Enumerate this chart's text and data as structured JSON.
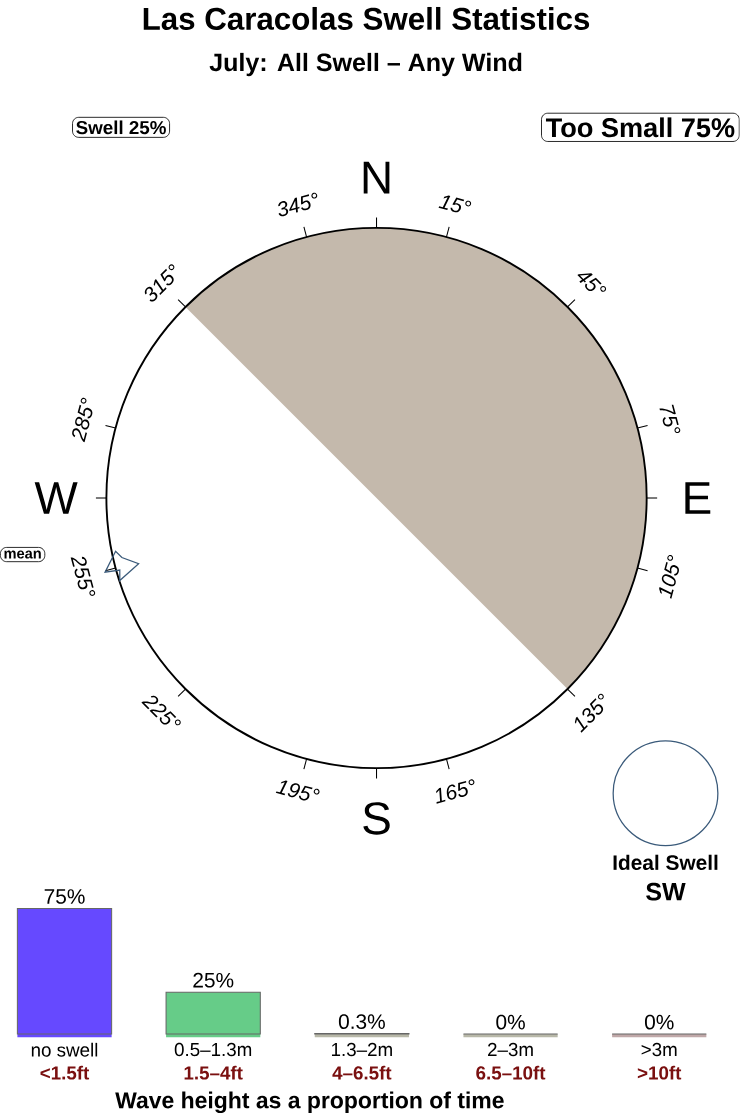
{
  "chart_data": [
    {
      "type": "other",
      "title": "Las Caracolas Swell Statistics",
      "subtitle": "July: All Swell – Any Wind",
      "annotations": [
        "Swell 25%",
        "Too Small 75%",
        "mean",
        "Ideal Swell",
        "SW",
        "N",
        "15°",
        "45°",
        "75°",
        "E",
        "105°",
        "135°",
        "165°",
        "S",
        "195°",
        "225°",
        "255°",
        "W",
        "285°",
        "315°",
        "345°"
      ]
    },
    {
      "type": "bar",
      "categories": [
        "no swell",
        "0.5–1.3m",
        "1.3–2m",
        "2–3m",
        ">3m"
      ],
      "values": [
        75,
        25,
        0.3,
        0,
        0
      ],
      "colors": [
        "#6649ff",
        "#66cc88",
        "#b8b8a8",
        "#b8b8a8",
        "#c0a8a8"
      ],
      "value_labels": [
        "75%",
        "25%",
        "0.3%",
        "0%",
        "0%"
      ],
      "xlabel": "Wave height as a proportion of time",
      "annotations": [
        "<1.5ft",
        "1.5–4ft",
        "4–6.5ft",
        "6.5–10ft",
        ">10ft"
      ]
    }
  ]
}
